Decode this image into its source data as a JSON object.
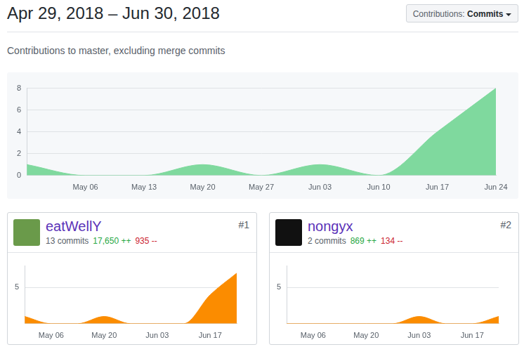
{
  "header": {
    "title": "Apr 29, 2018 – Jun 30, 2018",
    "dropdown_label": "Contributions:",
    "dropdown_value": "Commits",
    "subtitle": "Contributions to master, excluding merge commits"
  },
  "chart_data": [
    {
      "type": "area",
      "categories": [
        null,
        "May 06",
        "May 13",
        "May 20",
        "May 27",
        "Jun 03",
        "Jun 10",
        "Jun 17",
        "Jun 24"
      ],
      "values": [
        1,
        0,
        0,
        1,
        0,
        1,
        0,
        4,
        8
      ],
      "color": "#7fd99e",
      "ylim": [
        0,
        8
      ],
      "yticks": [
        0,
        2,
        4,
        6,
        8
      ],
      "grid": true
    },
    {
      "type": "area",
      "title": "eatWellY",
      "rank": "#1",
      "subtitle": "13 commits",
      "annotations": [
        "17,650 ++",
        "935 --"
      ],
      "categories": [
        null,
        "May 06",
        null,
        "May 20",
        null,
        "Jun 03",
        null,
        "Jun 17",
        null
      ],
      "values": [
        1,
        0,
        0,
        1,
        0,
        0,
        0,
        4,
        7
      ],
      "color": "#fb8c00",
      "ylim": [
        0,
        8
      ],
      "yticks": [
        5
      ],
      "grid": true
    },
    {
      "type": "area",
      "title": "nongyx",
      "rank": "#2",
      "subtitle": "2 commits",
      "annotations": [
        "869 ++",
        "134 --"
      ],
      "categories": [
        null,
        "May 06",
        null,
        "May 20",
        null,
        "Jun 03",
        null,
        "Jun 17",
        null
      ],
      "values": [
        0,
        0,
        0,
        0,
        0,
        1,
        0,
        0,
        1
      ],
      "color": "#fb8c00",
      "ylim": [
        0,
        8
      ],
      "yticks": [
        5
      ],
      "grid": true
    }
  ]
}
